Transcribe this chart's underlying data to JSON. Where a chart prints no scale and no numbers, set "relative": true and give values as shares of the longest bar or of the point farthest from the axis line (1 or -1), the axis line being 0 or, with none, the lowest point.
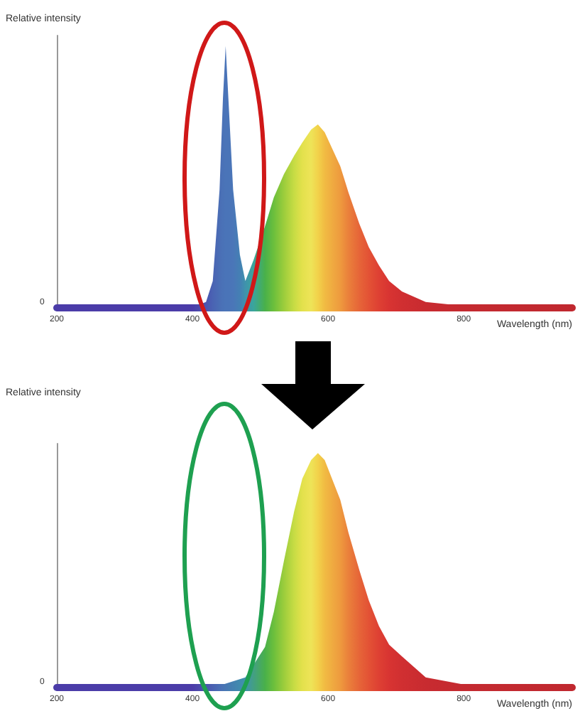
{
  "chart_data": [
    {
      "type": "area",
      "relative": true,
      "ylabel": "Relative intensity",
      "xlabel": "Wavelength (nm)",
      "xlim": [
        200,
        960
      ],
      "xticks": [
        200,
        400,
        600,
        800
      ],
      "annotations": [
        "0"
      ],
      "grid": false,
      "series": [
        {
          "x": [
            200,
            400,
            420,
            430,
            440,
            445,
            449,
            453,
            460,
            470,
            478,
            490,
            507,
            520,
            535,
            550,
            562,
            575,
            585,
            595,
            618,
            630,
            646,
            660,
            675,
            690,
            709,
            744,
            800,
            960
          ],
          "values": [
            0,
            0,
            0.02,
            0.1,
            0.45,
            0.8,
            1,
            0.8,
            0.45,
            0.2,
            0.1,
            0.18,
            0.31,
            0.42,
            0.51,
            0.58,
            0.63,
            0.68,
            0.7,
            0.67,
            0.54,
            0.44,
            0.32,
            0.23,
            0.16,
            0.1,
            0.06,
            0.02,
            0.005,
            0
          ],
          "colors": [
            "#4b3ca8",
            "#4b3ca8",
            "#4a55b0",
            "#4a63b3",
            "#4a6eb5",
            "#4a72b7",
            "#4a74b8",
            "#4a74b8",
            "#4a76b8",
            "#4480b4",
            "#3f93ac",
            "#3aa59c",
            "#49b04a",
            "#6cbf3c",
            "#9ccd3c",
            "#c7dc44",
            "#e3e14c",
            "#eee458",
            "#f2d24a",
            "#f1bb43",
            "#ee9a3e",
            "#ea803b",
            "#e66538",
            "#e35235",
            "#de4033",
            "#d83432",
            "#d02f31",
            "#c82b30",
            "#c42a30",
            "#c0282f"
          ]
        }
      ]
    },
    {
      "type": "area",
      "relative": true,
      "ylabel": "Relative intensity",
      "xlabel": "Wavelength (nm)",
      "xlim": [
        200,
        960
      ],
      "xticks": [
        200,
        400,
        600,
        800
      ],
      "annotations": [
        "0"
      ],
      "grid": false,
      "series": [
        {
          "x": [
            200,
            400,
            440,
            478,
            507,
            520,
            535,
            550,
            562,
            575,
            585,
            595,
            618,
            630,
            646,
            660,
            675,
            690,
            709,
            744,
            800,
            960
          ],
          "values": [
            0,
            0,
            0.005,
            0.04,
            0.17,
            0.32,
            0.54,
            0.75,
            0.89,
            0.97,
            1,
            0.97,
            0.8,
            0.66,
            0.5,
            0.37,
            0.26,
            0.18,
            0.13,
            0.04,
            0.01,
            0
          ],
          "colors": [
            "#4b3ca8",
            "#4b3ca8",
            "#4a6eb5",
            "#3f93ac",
            "#49b04a",
            "#6cbf3c",
            "#9ccd3c",
            "#c7dc44",
            "#e3e14c",
            "#eee458",
            "#f2d24a",
            "#f1bb43",
            "#ee9a3e",
            "#ea803b",
            "#e66538",
            "#e35235",
            "#de4033",
            "#d83432",
            "#d02f31",
            "#c82b30",
            "#c42a30",
            "#c0282f"
          ]
        }
      ]
    }
  ]
}
